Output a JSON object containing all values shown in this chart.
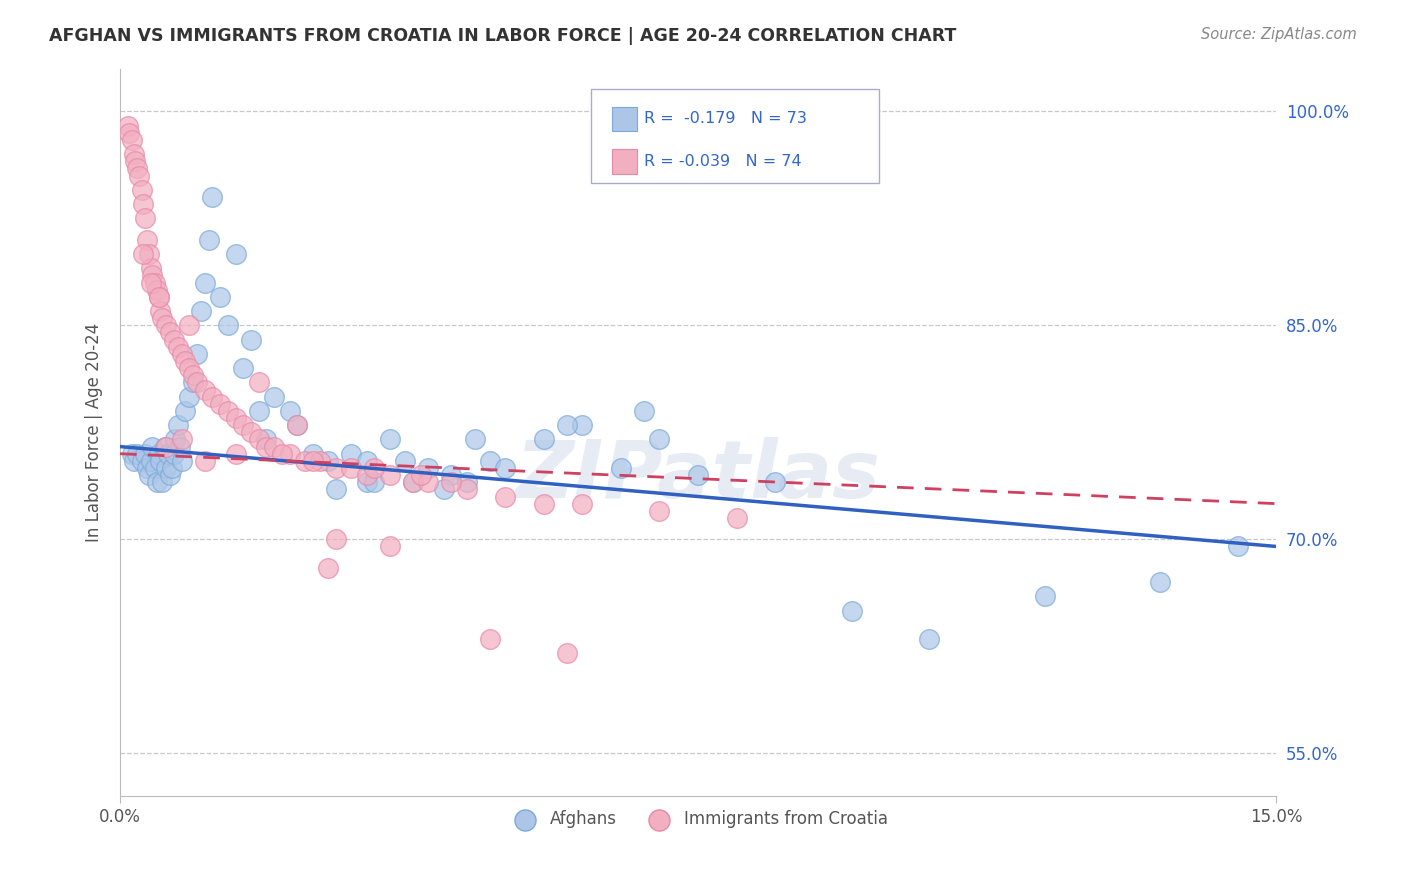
{
  "title": "AFGHAN VS IMMIGRANTS FROM CROATIA IN LABOR FORCE | AGE 20-24 CORRELATION CHART",
  "source": "Source: ZipAtlas.com",
  "ylabel": "In Labor Force | Age 20-24",
  "xlim": [
    0.0,
    15.0
  ],
  "ylim": [
    52.0,
    103.0
  ],
  "yticks": [
    55.0,
    70.0,
    85.0,
    100.0
  ],
  "ytick_labels": [
    "55.0%",
    "70.0%",
    "85.0%",
    "100.0%"
  ],
  "blue_color": "#adc6e8",
  "pink_color": "#f2afc0",
  "trendline_blue": "#3060c0",
  "trendline_pink": "#d04060",
  "legend_text_color": "#3366cc",
  "watermark": "ZIPatlas",
  "blue_trend_x0": 0.0,
  "blue_trend_y0": 76.5,
  "blue_trend_x1": 15.0,
  "blue_trend_y1": 69.5,
  "pink_trend_x0": 0.0,
  "pink_trend_y0": 76.0,
  "pink_trend_x1": 15.0,
  "pink_trend_y1": 72.5,
  "afghans_x": [
    0.15,
    0.18,
    0.22,
    0.28,
    0.32,
    0.35,
    0.38,
    0.4,
    0.42,
    0.45,
    0.48,
    0.5,
    0.52,
    0.55,
    0.58,
    0.6,
    0.62,
    0.65,
    0.68,
    0.7,
    0.72,
    0.75,
    0.78,
    0.8,
    0.85,
    0.9,
    0.95,
    1.0,
    1.05,
    1.1,
    1.15,
    1.2,
    1.3,
    1.4,
    1.5,
    1.6,
    1.7,
    1.8,
    2.0,
    2.2,
    2.5,
    2.7,
    3.0,
    3.2,
    3.5,
    3.7,
    4.0,
    4.3,
    4.5,
    4.8,
    5.0,
    5.5,
    6.0,
    6.5,
    7.0,
    7.5,
    8.5,
    9.5,
    10.5,
    12.0,
    13.5,
    14.5,
    3.2,
    2.8,
    3.8,
    4.2,
    2.3,
    1.9,
    5.8,
    6.8,
    4.6,
    3.3
  ],
  "afghans_y": [
    76.0,
    75.5,
    76.0,
    75.5,
    76.0,
    75.0,
    74.5,
    75.5,
    76.5,
    75.0,
    74.0,
    76.0,
    75.5,
    74.0,
    76.5,
    75.0,
    76.0,
    74.5,
    75.0,
    76.0,
    77.0,
    78.0,
    76.5,
    75.5,
    79.0,
    80.0,
    81.0,
    83.0,
    86.0,
    88.0,
    91.0,
    94.0,
    87.0,
    85.0,
    90.0,
    82.0,
    84.0,
    79.0,
    80.0,
    79.0,
    76.0,
    75.5,
    76.0,
    75.5,
    77.0,
    75.5,
    75.0,
    74.5,
    74.0,
    75.5,
    75.0,
    77.0,
    78.0,
    75.0,
    77.0,
    74.5,
    74.0,
    65.0,
    63.0,
    66.0,
    67.0,
    69.5,
    74.0,
    73.5,
    74.0,
    73.5,
    78.0,
    77.0,
    78.0,
    79.0,
    77.0,
    74.0
  ],
  "croatia_x": [
    0.1,
    0.12,
    0.15,
    0.18,
    0.2,
    0.22,
    0.25,
    0.28,
    0.3,
    0.32,
    0.35,
    0.38,
    0.4,
    0.42,
    0.45,
    0.48,
    0.5,
    0.52,
    0.55,
    0.6,
    0.65,
    0.7,
    0.75,
    0.8,
    0.85,
    0.9,
    0.95,
    1.0,
    1.1,
    1.2,
    1.3,
    1.4,
    1.5,
    1.6,
    1.7,
    1.8,
    1.9,
    2.0,
    2.2,
    2.4,
    2.6,
    2.8,
    3.0,
    3.2,
    3.5,
    3.8,
    4.0,
    4.5,
    5.0,
    5.5,
    6.0,
    7.0,
    8.0,
    1.5,
    0.6,
    0.8,
    1.1,
    2.1,
    2.5,
    3.3,
    3.9,
    4.3,
    0.3,
    0.4,
    1.8,
    0.5,
    2.8,
    3.5,
    0.9,
    4.8,
    5.8,
    2.3,
    2.7
  ],
  "croatia_y": [
    99.0,
    98.5,
    98.0,
    97.0,
    96.5,
    96.0,
    95.5,
    94.5,
    93.5,
    92.5,
    91.0,
    90.0,
    89.0,
    88.5,
    88.0,
    87.5,
    87.0,
    86.0,
    85.5,
    85.0,
    84.5,
    84.0,
    83.5,
    83.0,
    82.5,
    82.0,
    81.5,
    81.0,
    80.5,
    80.0,
    79.5,
    79.0,
    78.5,
    78.0,
    77.5,
    77.0,
    76.5,
    76.5,
    76.0,
    75.5,
    75.5,
    75.0,
    75.0,
    74.5,
    74.5,
    74.0,
    74.0,
    73.5,
    73.0,
    72.5,
    72.5,
    72.0,
    71.5,
    76.0,
    76.5,
    77.0,
    75.5,
    76.0,
    75.5,
    75.0,
    74.5,
    74.0,
    90.0,
    88.0,
    81.0,
    87.0,
    70.0,
    69.5,
    85.0,
    63.0,
    62.0,
    78.0,
    68.0
  ]
}
